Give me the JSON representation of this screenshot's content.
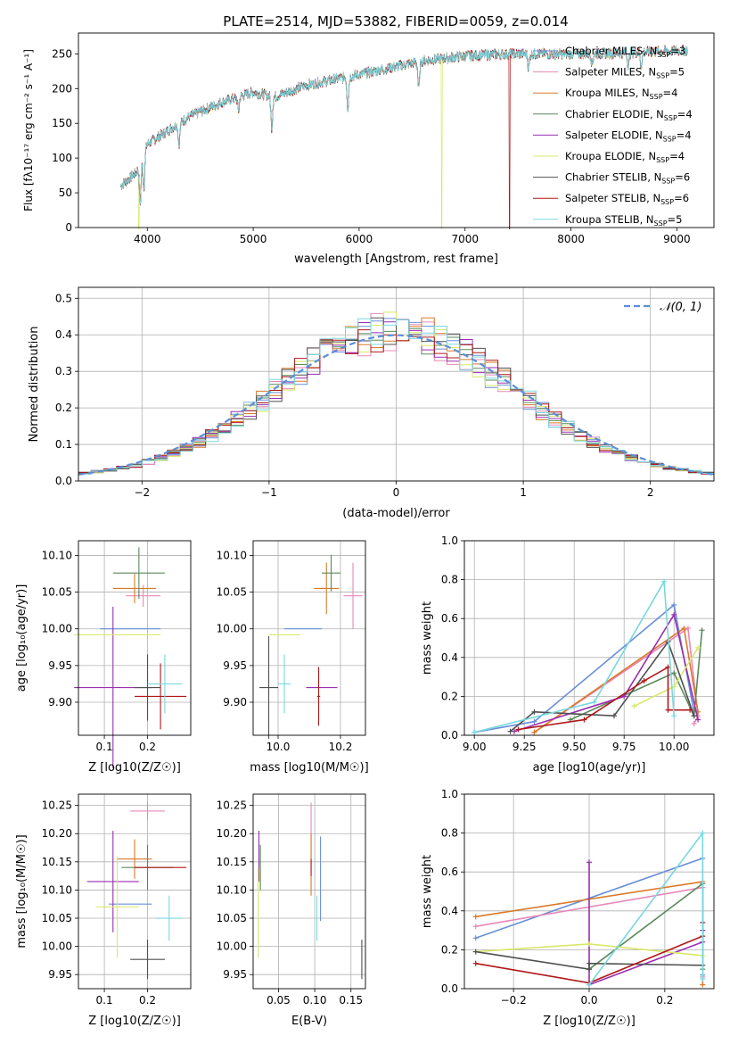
{
  "title": "PLATE=2514, MJD=53882, FIBERID=0059, z=0.014",
  "colors": [
    "#6a8fd8",
    "#e888b8",
    "#d97a2a",
    "#5a8a5a",
    "#9a2eb0",
    "#d8e868",
    "#505050",
    "#b01818",
    "#78d8e0"
  ],
  "legend_labels": [
    "Chabrier MILES, N_SSP=3",
    "Salpeter MILES, N_SSP=5",
    "Kroupa MILES, N_SSP=4",
    "Chabrier ELODIE, N_SSP=4",
    "Salpeter ELODIE, N_SSP=4",
    "Kroupa ELODIE, N_SSP=4",
    "Chabrier STELIB, N_SSP=6",
    "Salpeter STELIB, N_SSP=6",
    "Kroupa STELIB, N_SSP=5"
  ],
  "chart_data": [
    {
      "id": "spectrum",
      "type": "line",
      "xlabel": "wavelength [Angstrom, rest frame]",
      "ylabel": "Flux [f_λ 10^-17 erg cm^-2 s^-1 A^-1]",
      "xlim": [
        3350,
        9350
      ],
      "ylim": [
        0,
        280
      ],
      "xticks": [
        4000,
        5000,
        6000,
        7000,
        8000,
        9000
      ],
      "yticks": [
        0,
        50,
        100,
        150,
        200,
        250
      ],
      "legend": "upper right",
      "grid": false,
      "continuum": [
        [
          3750,
          60
        ],
        [
          3900,
          80
        ],
        [
          4000,
          120
        ],
        [
          4200,
          140
        ],
        [
          4400,
          160
        ],
        [
          4700,
          180
        ],
        [
          5000,
          195
        ],
        [
          5200,
          188
        ],
        [
          5500,
          205
        ],
        [
          6000,
          220
        ],
        [
          6300,
          230
        ],
        [
          6600,
          240
        ],
        [
          7000,
          247
        ],
        [
          7400,
          250
        ],
        [
          7800,
          250
        ],
        [
          8200,
          250
        ],
        [
          8600,
          252
        ],
        [
          9100,
          255
        ]
      ],
      "absorption": [
        [
          3934,
          60
        ],
        [
          3968,
          50
        ],
        [
          4300,
          30
        ],
        [
          4861,
          20
        ],
        [
          5175,
          45
        ],
        [
          5893,
          45
        ],
        [
          6563,
          40
        ],
        [
          7600,
          20
        ],
        [
          8200,
          15
        ],
        [
          8542,
          20
        ],
        [
          8662,
          20
        ]
      ],
      "dropouts": [
        {
          "series": 5,
          "x": [
            3920,
            6780
          ]
        },
        {
          "series": 7,
          "x": [
            7420
          ]
        }
      ]
    },
    {
      "id": "residuals",
      "type": "step",
      "xlabel": "(data-model)/error",
      "ylabel": "Normed distribution",
      "xlim": [
        -2.5,
        2.5
      ],
      "ylim": [
        0,
        0.53
      ],
      "xticks": [
        -2,
        -1,
        0,
        1,
        2
      ],
      "yticks": [
        0.0,
        0.1,
        0.2,
        0.3,
        0.4,
        0.5
      ],
      "grid": true,
      "legend_label": "N(0,1)",
      "legend": "upper right"
    },
    {
      "id": "age_Z",
      "type": "errorbar",
      "xlabel": "Z [log10(Z/Z☉)]",
      "ylabel": "age [log10(age/yr)]",
      "xlim": [
        0.04,
        0.3
      ],
      "ylim": [
        9.855,
        10.12
      ],
      "xticks": [
        0.1,
        0.2
      ],
      "yticks": [
        9.9,
        9.95,
        10.0,
        10.05,
        10.1
      ],
      "grid": true,
      "points": [
        {
          "x": 0.16,
          "xerr": 0.07,
          "y": 10.0,
          "yerr": 0.0
        },
        {
          "x": 0.19,
          "xerr": 0.04,
          "y": 10.045,
          "yerr": 0.015
        },
        {
          "x": 0.17,
          "xerr": 0.05,
          "y": 10.055,
          "yerr": 0.02
        },
        {
          "x": 0.18,
          "xerr": 0.06,
          "y": 10.076,
          "yerr": 0.035
        },
        {
          "x": 0.12,
          "xerr": 0.09,
          "y": 9.92,
          "yerr": 0.11
        },
        {
          "x": 0.13,
          "xerr": 0.1,
          "y": 9.992,
          "yerr": 0.0
        },
        {
          "x": 0.2,
          "xerr": 0.03,
          "y": 9.92,
          "yerr": 0.045
        },
        {
          "x": 0.23,
          "xerr": 0.06,
          "y": 9.908,
          "yerr": 0.045
        },
        {
          "x": 0.24,
          "xerr": 0.04,
          "y": 9.925,
          "yerr": 0.04
        }
      ]
    },
    {
      "id": "age_mass",
      "type": "errorbar",
      "xlabel": "mass [log10(M/M☉)]",
      "xlim": [
        9.92,
        10.28
      ],
      "ylim": [
        9.855,
        10.12
      ],
      "xticks": [
        10.0,
        10.2
      ],
      "yticks": [
        9.9,
        9.95,
        10.0,
        10.05,
        10.1
      ],
      "grid": true,
      "points": [
        {
          "x": 10.08,
          "xerr": 0.06,
          "y": 10.0,
          "yerr": 0.0
        },
        {
          "x": 10.24,
          "xerr": 0.03,
          "y": 10.045,
          "yerr": 0.045
        },
        {
          "x": 10.155,
          "xerr": 0.04,
          "y": 10.055,
          "yerr": 0.035
        },
        {
          "x": 10.17,
          "xerr": 0.03,
          "y": 10.076,
          "yerr": 0.025
        },
        {
          "x": 10.14,
          "xerr": 0.05,
          "y": 9.92,
          "yerr": 0.0
        },
        {
          "x": 10.02,
          "xerr": 0.05,
          "y": 9.992,
          "yerr": 0.0
        },
        {
          "x": 9.97,
          "xerr": 0.03,
          "y": 9.92,
          "yerr": 0.07
        },
        {
          "x": 10.13,
          "xerr": 0.005,
          "y": 9.908,
          "yerr": 0.04
        },
        {
          "x": 10.02,
          "xerr": 0.02,
          "y": 9.925,
          "yerr": 0.04
        }
      ]
    },
    {
      "id": "weight_age",
      "type": "line",
      "xlabel": "age [log10(age/yr)]",
      "ylabel": "mass weight",
      "xlim": [
        8.95,
        10.2
      ],
      "ylim": [
        0,
        1.0
      ],
      "xticks": [
        9.0,
        9.25,
        9.5,
        9.75,
        10.0
      ],
      "yticks": [
        0.0,
        0.2,
        0.4,
        0.6,
        0.8,
        1.0
      ],
      "grid": true,
      "series": [
        [
          [
            9.0,
            0.015
          ],
          [
            9.3,
            0.07
          ],
          [
            10.0,
            0.67
          ],
          [
            10.1,
            0.12
          ]
        ],
        [
          [
            9.3,
            0.015
          ],
          [
            10.07,
            0.55
          ],
          [
            10.12,
            0.1
          ],
          [
            10.1,
            0.06
          ]
        ],
        [
          [
            9.3,
            0.015
          ],
          [
            10.05,
            0.55
          ],
          [
            10.12,
            0.12
          ]
        ],
        [
          [
            9.48,
            0.08
          ],
          [
            10.0,
            0.32
          ],
          [
            10.1,
            0.1
          ],
          [
            10.14,
            0.54
          ]
        ],
        [
          [
            9.2,
            0.02
          ],
          [
            9.75,
            0.2
          ],
          [
            10.0,
            0.62
          ],
          [
            10.12,
            0.08
          ]
        ],
        [
          [
            9.8,
            0.15
          ],
          [
            10.0,
            0.25
          ],
          [
            10.12,
            0.45
          ]
        ],
        [
          [
            9.18,
            0.02
          ],
          [
            9.3,
            0.12
          ],
          [
            9.7,
            0.1
          ],
          [
            9.97,
            0.48
          ],
          [
            10.1,
            0.1
          ]
        ],
        [
          [
            9.22,
            0.03
          ],
          [
            9.55,
            0.08
          ],
          [
            9.85,
            0.28
          ],
          [
            9.97,
            0.35
          ],
          [
            9.97,
            0.13
          ],
          [
            10.08,
            0.13
          ]
        ],
        [
          [
            9.0,
            0.015
          ],
          [
            9.6,
            0.17
          ],
          [
            9.95,
            0.79
          ],
          [
            10.0,
            0.1
          ]
        ]
      ]
    },
    {
      "id": "mass_Z",
      "type": "errorbar",
      "xlabel": "Z [log10(Z/Z☉)]",
      "ylabel": "mass [log10(M/M☉)]",
      "xlim": [
        0.04,
        0.3
      ],
      "ylim": [
        9.925,
        10.27
      ],
      "xticks": [
        0.1,
        0.2
      ],
      "yticks": [
        9.95,
        10.0,
        10.05,
        10.1,
        10.15,
        10.2,
        10.25
      ],
      "grid": true,
      "points": [
        {
          "x": 0.16,
          "xerr": 0.05,
          "y": 10.075,
          "yerr": 0.0
        },
        {
          "x": 0.2,
          "xerr": 0.04,
          "y": 10.24,
          "yerr": 0.015
        },
        {
          "x": 0.17,
          "xerr": 0.04,
          "y": 10.155,
          "yerr": 0.035
        },
        {
          "x": 0.2,
          "xerr": 0.06,
          "y": 10.14,
          "yerr": 0.04
        },
        {
          "x": 0.12,
          "xerr": 0.06,
          "y": 10.115,
          "yerr": 0.09
        },
        {
          "x": 0.13,
          "xerr": 0.05,
          "y": 10.07,
          "yerr": 0.09
        },
        {
          "x": 0.2,
          "xerr": 0.04,
          "y": 9.977,
          "yerr": 0.035
        },
        {
          "x": 0.23,
          "xerr": 0.06,
          "y": 10.14,
          "yerr": 0.0
        },
        {
          "x": 0.25,
          "xerr": 0.03,
          "y": 10.05,
          "yerr": 0.04
        }
      ]
    },
    {
      "id": "mass_ebv",
      "type": "errorbar",
      "xlabel": "E(B-V)",
      "xlim": [
        0.015,
        0.17
      ],
      "ylim": [
        9.925,
        10.27
      ],
      "xticks": [
        0.05,
        0.1,
        0.15
      ],
      "yticks": [
        9.95,
        10.0,
        10.05,
        10.1,
        10.15,
        10.2,
        10.25
      ],
      "grid": true,
      "points": [
        {
          "x": 0.108,
          "xerr": 0.0,
          "y": 10.12,
          "yerr": 0.075
        },
        {
          "x": 0.095,
          "xerr": 0.0,
          "y": 10.2,
          "yerr": 0.055
        },
        {
          "x": 0.095,
          "xerr": 0.0,
          "y": 10.145,
          "yerr": 0.055
        },
        {
          "x": 0.025,
          "xerr": 0.0,
          "y": 10.14,
          "yerr": 0.04
        },
        {
          "x": 0.023,
          "xerr": 0.0,
          "y": 10.16,
          "yerr": 0.045
        },
        {
          "x": 0.022,
          "xerr": 0.0,
          "y": 10.06,
          "yerr": 0.08
        },
        {
          "x": 0.165,
          "xerr": 0.0,
          "y": 9.977,
          "yerr": 0.035
        },
        {
          "x": 0.095,
          "xerr": 0.0,
          "y": 10.14,
          "yerr": 0.015
        },
        {
          "x": 0.103,
          "xerr": 0.0,
          "y": 10.05,
          "yerr": 0.04
        }
      ]
    },
    {
      "id": "weight_Z",
      "type": "line",
      "xlabel": "Z [log10(Z/Z☉)]",
      "ylabel": "mass weight",
      "xlim": [
        -0.33,
        0.33
      ],
      "ylim": [
        0,
        1.0
      ],
      "xticks": [
        -0.2,
        0.0,
        0.2
      ],
      "yticks": [
        0.0,
        0.2,
        0.4,
        0.6,
        0.8,
        1.0
      ],
      "grid": true,
      "series": [
        [
          [
            -0.3,
            0.26
          ],
          [
            0.3,
            0.67
          ],
          [
            0.3,
            0.07
          ]
        ],
        [
          [
            -0.3,
            0.32
          ],
          [
            0.3,
            0.52
          ],
          [
            0.3,
            0.06
          ]
        ],
        [
          [
            -0.3,
            0.37
          ],
          [
            0.3,
            0.55
          ],
          [
            0.3,
            0.02
          ]
        ],
        [
          [
            0.0,
            0.1
          ],
          [
            0.3,
            0.54
          ],
          [
            0.3,
            0.1
          ]
        ],
        [
          [
            0.0,
            0.65
          ],
          [
            0.0,
            0.02
          ],
          [
            0.3,
            0.24
          ],
          [
            0.3,
            0.3
          ]
        ],
        [
          [
            -0.3,
            0.19
          ],
          [
            0.0,
            0.23
          ],
          [
            0.3,
            0.17
          ]
        ],
        [
          [
            -0.3,
            0.19
          ],
          [
            0.0,
            0.1
          ],
          [
            0.0,
            0.13
          ],
          [
            0.3,
            0.12
          ]
        ],
        [
          [
            -0.3,
            0.13
          ],
          [
            0.0,
            0.03
          ],
          [
            0.3,
            0.27
          ],
          [
            0.3,
            0.34
          ]
        ],
        [
          [
            0.0,
            0.02
          ],
          [
            0.3,
            0.8
          ],
          [
            0.3,
            0.05
          ]
        ]
      ]
    }
  ]
}
